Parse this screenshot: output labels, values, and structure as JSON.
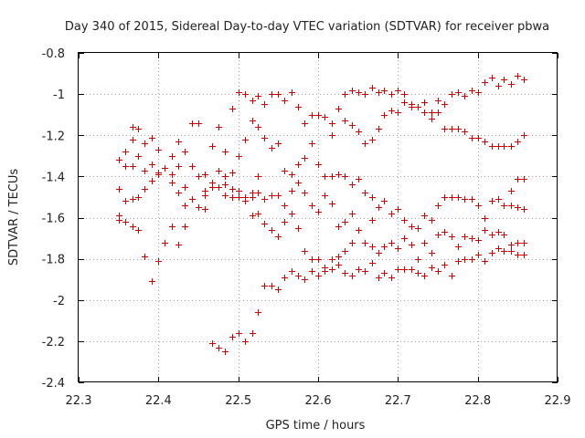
{
  "chart_data": {
    "type": "scatter",
    "title": "Day 340 of 2015, Sidereal Day-to-day VTEC variation (SDTVAR) for receiver pbwa",
    "xlabel": "GPS time / hours",
    "ylabel": "SDTVAR / TECUs",
    "xlim": [
      22.3,
      22.9
    ],
    "ylim": [
      -2.4,
      -0.8
    ],
    "xticks": [
      22.3,
      22.4,
      22.5,
      22.6,
      22.7,
      22.8,
      22.9
    ],
    "xtick_labels": [
      "22.3",
      "22.4",
      "22.5",
      "22.6",
      "22.7",
      "22.8",
      "22.9"
    ],
    "yticks": [
      -0.8,
      -1.0,
      -1.2,
      -1.4,
      -1.6,
      -1.8,
      -2.0,
      -2.2,
      -2.4
    ],
    "ytick_labels": [
      "-0.8",
      "-1",
      "-1.2",
      "-1.4",
      "-1.6",
      "-1.8",
      "-2",
      "-2.2",
      "-2.4"
    ],
    "grid": true,
    "marker": "+",
    "color": "#cc0000",
    "points": [
      [
        22.35,
        -1.32
      ],
      [
        22.35,
        -1.46
      ],
      [
        22.35,
        -1.59
      ],
      [
        22.35,
        -1.61
      ],
      [
        22.358,
        -1.28
      ],
      [
        22.358,
        -1.35
      ],
      [
        22.358,
        -1.52
      ],
      [
        22.358,
        -1.62
      ],
      [
        22.367,
        -1.16
      ],
      [
        22.367,
        -1.22
      ],
      [
        22.367,
        -1.35
      ],
      [
        22.367,
        -1.51
      ],
      [
        22.367,
        -1.64
      ],
      [
        22.375,
        -1.17
      ],
      [
        22.375,
        -1.3
      ],
      [
        22.375,
        -1.5
      ],
      [
        22.375,
        -1.66
      ],
      [
        22.383,
        -1.24
      ],
      [
        22.383,
        -1.37
      ],
      [
        22.383,
        -1.46
      ],
      [
        22.383,
        -1.79
      ],
      [
        22.392,
        -1.21
      ],
      [
        22.392,
        -1.34
      ],
      [
        22.392,
        -1.42
      ],
      [
        22.392,
        -1.91
      ],
      [
        22.4,
        -1.27
      ],
      [
        22.4,
        -1.38
      ],
      [
        22.4,
        -1.39
      ],
      [
        22.4,
        -1.81
      ],
      [
        22.408,
        -1.36
      ],
      [
        22.408,
        -1.72
      ],
      [
        22.417,
        -1.3
      ],
      [
        22.417,
        -1.39
      ],
      [
        22.417,
        -1.43
      ],
      [
        22.417,
        -1.64
      ],
      [
        22.425,
        -1.23
      ],
      [
        22.425,
        -1.35
      ],
      [
        22.425,
        -1.48
      ],
      [
        22.425,
        -1.73
      ],
      [
        22.433,
        -1.28
      ],
      [
        22.433,
        -1.45
      ],
      [
        22.433,
        -1.54
      ],
      [
        22.433,
        -1.64
      ],
      [
        22.442,
        -1.14
      ],
      [
        22.442,
        -1.35
      ],
      [
        22.442,
        -1.51
      ],
      [
        22.45,
        -1.14
      ],
      [
        22.45,
        -1.4
      ],
      [
        22.45,
        -1.55
      ],
      [
        22.458,
        -1.39
      ],
      [
        22.458,
        -1.47
      ],
      [
        22.458,
        -1.49
      ],
      [
        22.458,
        -1.56
      ],
      [
        22.467,
        -1.25
      ],
      [
        22.467,
        -1.43
      ],
      [
        22.467,
        -1.45
      ],
      [
        22.467,
        -2.21
      ],
      [
        22.475,
        -1.16
      ],
      [
        22.475,
        -1.37
      ],
      [
        22.475,
        -1.45
      ],
      [
        22.475,
        -2.23
      ],
      [
        22.483,
        -1.28
      ],
      [
        22.483,
        -1.4
      ],
      [
        22.483,
        -1.44
      ],
      [
        22.483,
        -1.49
      ],
      [
        22.483,
        -2.25
      ],
      [
        22.492,
        -1.07
      ],
      [
        22.492,
        -1.38
      ],
      [
        22.492,
        -1.46
      ],
      [
        22.492,
        -1.5
      ],
      [
        22.492,
        -2.18
      ],
      [
        22.5,
        -0.99
      ],
      [
        22.5,
        -1.3
      ],
      [
        22.5,
        -1.47
      ],
      [
        22.5,
        -1.5
      ],
      [
        22.5,
        -2.16
      ],
      [
        22.508,
        -1.0
      ],
      [
        22.508,
        -1.22
      ],
      [
        22.508,
        -1.5
      ],
      [
        22.508,
        -1.52
      ],
      [
        22.508,
        -2.2
      ],
      [
        22.517,
        -1.03
      ],
      [
        22.517,
        -1.13
      ],
      [
        22.517,
        -1.48
      ],
      [
        22.517,
        -1.5
      ],
      [
        22.517,
        -1.59
      ],
      [
        22.517,
        -2.16
      ],
      [
        22.525,
        -1.01
      ],
      [
        22.525,
        -1.16
      ],
      [
        22.525,
        -1.4
      ],
      [
        22.525,
        -1.48
      ],
      [
        22.525,
        -1.58
      ],
      [
        22.525,
        -2.06
      ],
      [
        22.533,
        -1.05
      ],
      [
        22.533,
        -1.21
      ],
      [
        22.533,
        -1.51
      ],
      [
        22.533,
        -1.63
      ],
      [
        22.533,
        -1.93
      ],
      [
        22.542,
        -1.0
      ],
      [
        22.542,
        -1.26
      ],
      [
        22.542,
        -1.49
      ],
      [
        22.542,
        -1.66
      ],
      [
        22.542,
        -1.93
      ],
      [
        22.55,
        -1.0
      ],
      [
        22.55,
        -1.24
      ],
      [
        22.55,
        -1.49
      ],
      [
        22.55,
        -1.69
      ],
      [
        22.55,
        -1.95
      ],
      [
        22.558,
        -1.03
      ],
      [
        22.558,
        -1.37
      ],
      [
        22.558,
        -1.54
      ],
      [
        22.558,
        -1.62
      ],
      [
        22.558,
        -1.89
      ],
      [
        22.567,
        -0.99
      ],
      [
        22.567,
        -1.39
      ],
      [
        22.567,
        -1.47
      ],
      [
        22.567,
        -1.58
      ],
      [
        22.567,
        -1.86
      ],
      [
        22.575,
        -1.06
      ],
      [
        22.575,
        -1.34
      ],
      [
        22.575,
        -1.43
      ],
      [
        22.575,
        -1.65
      ],
      [
        22.575,
        -1.88
      ],
      [
        22.583,
        -1.14
      ],
      [
        22.583,
        -1.31
      ],
      [
        22.583,
        -1.48
      ],
      [
        22.583,
        -1.76
      ],
      [
        22.583,
        -1.9
      ],
      [
        22.592,
        -1.1
      ],
      [
        22.592,
        -1.24
      ],
      [
        22.592,
        -1.54
      ],
      [
        22.592,
        -1.8
      ],
      [
        22.592,
        -1.86
      ],
      [
        22.6,
        -1.1
      ],
      [
        22.6,
        -1.34
      ],
      [
        22.6,
        -1.57
      ],
      [
        22.6,
        -1.8
      ],
      [
        22.6,
        -1.88
      ],
      [
        22.608,
        -1.11
      ],
      [
        22.608,
        -1.4
      ],
      [
        22.608,
        -1.49
      ],
      [
        22.608,
        -1.84
      ],
      [
        22.608,
        -1.86
      ],
      [
        22.617,
        -1.14
      ],
      [
        22.617,
        -1.2
      ],
      [
        22.617,
        -1.4
      ],
      [
        22.617,
        -1.53
      ],
      [
        22.617,
        -1.8
      ],
      [
        22.617,
        -1.85
      ],
      [
        22.625,
        -1.07
      ],
      [
        22.625,
        -1.39
      ],
      [
        22.625,
        -1.64
      ],
      [
        22.625,
        -1.79
      ],
      [
        22.625,
        -1.83
      ],
      [
        22.633,
        -1.0
      ],
      [
        22.633,
        -1.13
      ],
      [
        22.633,
        -1.4
      ],
      [
        22.633,
        -1.62
      ],
      [
        22.633,
        -1.76
      ],
      [
        22.633,
        -1.87
      ],
      [
        22.642,
        -0.98
      ],
      [
        22.642,
        -1.15
      ],
      [
        22.642,
        -1.44
      ],
      [
        22.642,
        -1.58
      ],
      [
        22.642,
        -1.72
      ],
      [
        22.642,
        -1.88
      ],
      [
        22.65,
        -0.99
      ],
      [
        22.65,
        -1.18
      ],
      [
        22.65,
        -1.41
      ],
      [
        22.65,
        -1.66
      ],
      [
        22.65,
        -1.85
      ],
      [
        22.658,
        -1.0
      ],
      [
        22.658,
        -1.24
      ],
      [
        22.658,
        -1.48
      ],
      [
        22.658,
        -1.72
      ],
      [
        22.658,
        -1.86
      ],
      [
        22.667,
        -0.97
      ],
      [
        22.667,
        -1.22
      ],
      [
        22.667,
        -1.5
      ],
      [
        22.667,
        -1.61
      ],
      [
        22.667,
        -1.74
      ],
      [
        22.667,
        -1.82
      ],
      [
        22.675,
        -0.99
      ],
      [
        22.675,
        -1.17
      ],
      [
        22.675,
        -1.55
      ],
      [
        22.675,
        -1.77
      ],
      [
        22.675,
        -1.89
      ],
      [
        22.683,
        -0.98
      ],
      [
        22.683,
        -1.1
      ],
      [
        22.683,
        -1.52
      ],
      [
        22.683,
        -1.74
      ],
      [
        22.683,
        -1.87
      ],
      [
        22.692,
        -1.0
      ],
      [
        22.692,
        -1.08
      ],
      [
        22.692,
        -1.58
      ],
      [
        22.692,
        -1.72
      ],
      [
        22.692,
        -1.89
      ],
      [
        22.7,
        -0.98
      ],
      [
        22.7,
        -1.09
      ],
      [
        22.7,
        -1.56
      ],
      [
        22.7,
        -1.75
      ],
      [
        22.7,
        -1.85
      ],
      [
        22.708,
        -1.0
      ],
      [
        22.708,
        -1.04
      ],
      [
        22.708,
        -1.61
      ],
      [
        22.708,
        -1.7
      ],
      [
        22.708,
        -1.85
      ],
      [
        22.717,
        -1.05
      ],
      [
        22.717,
        -1.06
      ],
      [
        22.717,
        -1.64
      ],
      [
        22.717,
        -1.73
      ],
      [
        22.717,
        -1.85
      ],
      [
        22.725,
        -1.06
      ],
      [
        22.725,
        -1.65
      ],
      [
        22.725,
        -1.8
      ],
      [
        22.725,
        -1.87
      ],
      [
        22.733,
        -1.04
      ],
      [
        22.733,
        -1.09
      ],
      [
        22.733,
        -1.59
      ],
      [
        22.733,
        -1.72
      ],
      [
        22.733,
        -1.88
      ],
      [
        22.742,
        -1.09
      ],
      [
        22.742,
        -1.12
      ],
      [
        22.742,
        -1.61
      ],
      [
        22.742,
        -1.77
      ],
      [
        22.742,
        -1.84
      ],
      [
        22.75,
        -1.03
      ],
      [
        22.75,
        -1.09
      ],
      [
        22.75,
        -1.54
      ],
      [
        22.75,
        -1.68
      ],
      [
        22.75,
        -1.86
      ],
      [
        22.758,
        -1.05
      ],
      [
        22.758,
        -1.17
      ],
      [
        22.758,
        -1.5
      ],
      [
        22.758,
        -1.67
      ],
      [
        22.758,
        -1.83
      ],
      [
        22.767,
        -1.0
      ],
      [
        22.767,
        -1.17
      ],
      [
        22.767,
        -1.5
      ],
      [
        22.767,
        -1.69
      ],
      [
        22.767,
        -1.88
      ],
      [
        22.775,
        -0.99
      ],
      [
        22.775,
        -1.17
      ],
      [
        22.775,
        -1.5
      ],
      [
        22.775,
        -1.74
      ],
      [
        22.775,
        -1.81
      ],
      [
        22.783,
        -1.01
      ],
      [
        22.783,
        -1.18
      ],
      [
        22.783,
        -1.51
      ],
      [
        22.783,
        -1.69
      ],
      [
        22.783,
        -1.8
      ],
      [
        22.792,
        -0.98
      ],
      [
        22.792,
        -1.21
      ],
      [
        22.792,
        -1.51
      ],
      [
        22.792,
        -1.7
      ],
      [
        22.792,
        -1.8
      ],
      [
        22.8,
        -0.99
      ],
      [
        22.8,
        -1.21
      ],
      [
        22.8,
        -1.54
      ],
      [
        22.8,
        -1.71
      ],
      [
        22.8,
        -1.78
      ],
      [
        22.808,
        -0.94
      ],
      [
        22.808,
        -1.23
      ],
      [
        22.808,
        -1.6
      ],
      [
        22.808,
        -1.66
      ],
      [
        22.808,
        -1.81
      ],
      [
        22.817,
        -0.92
      ],
      [
        22.817,
        -1.25
      ],
      [
        22.817,
        -1.52
      ],
      [
        22.817,
        -1.68
      ],
      [
        22.817,
        -1.77
      ],
      [
        22.825,
        -0.96
      ],
      [
        22.825,
        -1.25
      ],
      [
        22.825,
        -1.51
      ],
      [
        22.825,
        -1.67
      ],
      [
        22.825,
        -1.75
      ],
      [
        22.833,
        -0.93
      ],
      [
        22.833,
        -1.25
      ],
      [
        22.833,
        -1.54
      ],
      [
        22.833,
        -1.68
      ],
      [
        22.833,
        -1.76
      ],
      [
        22.842,
        -0.95
      ],
      [
        22.842,
        -1.25
      ],
      [
        22.842,
        -1.47
      ],
      [
        22.842,
        -1.54
      ],
      [
        22.842,
        -1.73
      ],
      [
        22.842,
        -1.76
      ],
      [
        22.85,
        -0.91
      ],
      [
        22.85,
        -1.23
      ],
      [
        22.85,
        -1.41
      ],
      [
        22.85,
        -1.55
      ],
      [
        22.85,
        -1.72
      ],
      [
        22.85,
        -1.78
      ],
      [
        22.858,
        -0.93
      ],
      [
        22.858,
        -1.2
      ],
      [
        22.858,
        -1.41
      ],
      [
        22.858,
        -1.56
      ],
      [
        22.858,
        -1.72
      ],
      [
        22.858,
        -1.78
      ]
    ]
  }
}
